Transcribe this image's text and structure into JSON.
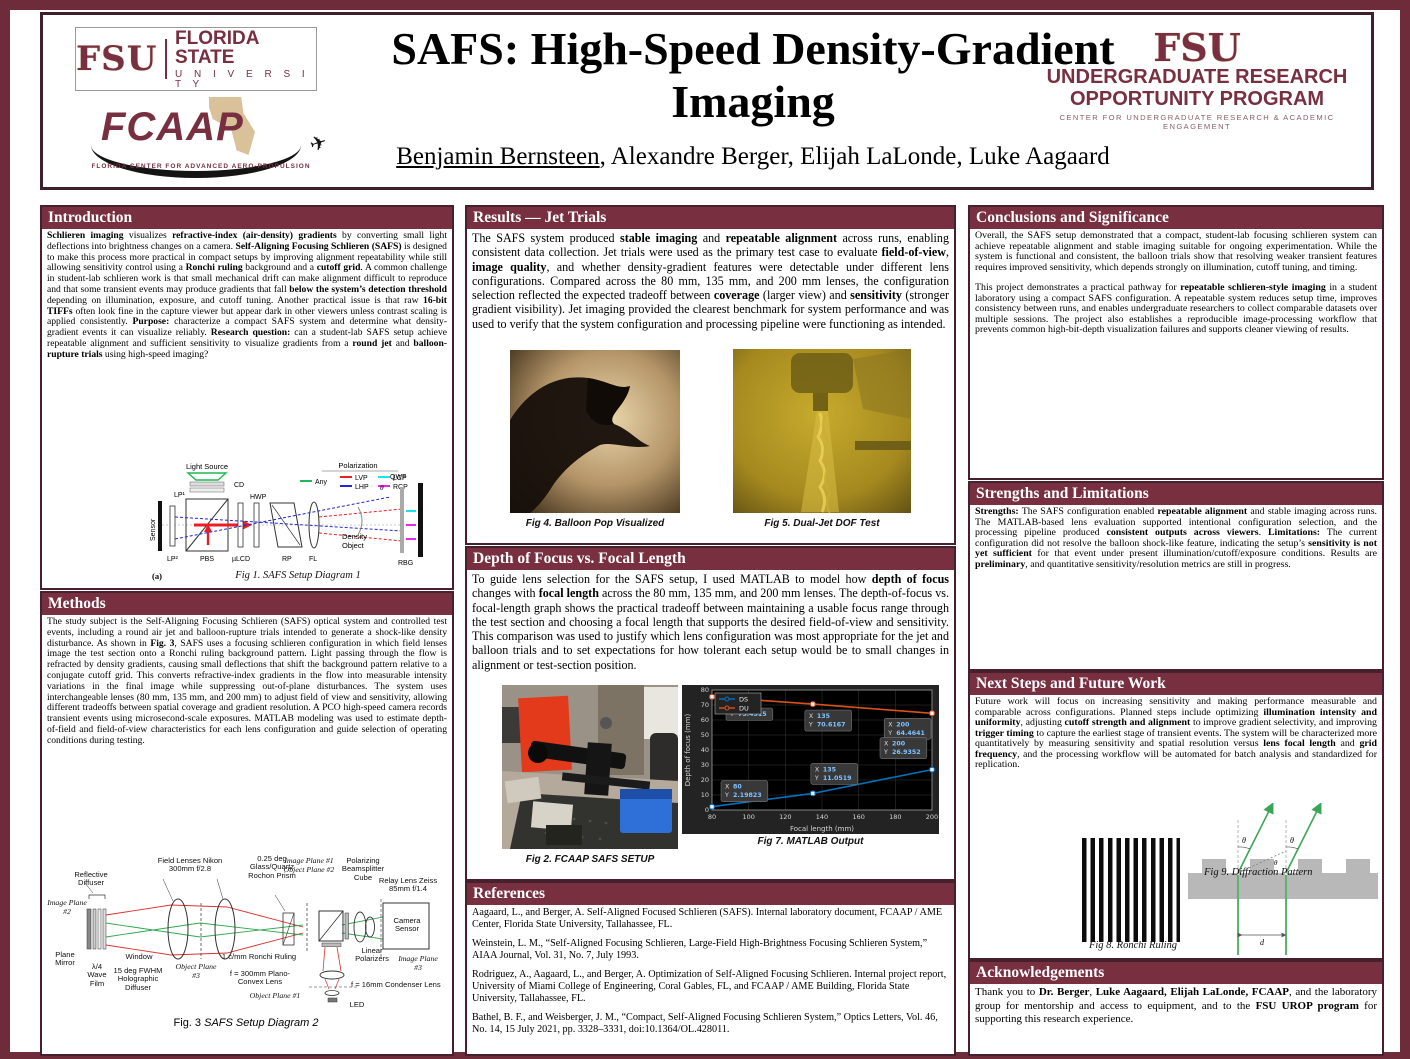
{
  "theme": {
    "garnet": "#782F40",
    "garnet_dark": "#6e2b3a",
    "box_border": "#46202c"
  },
  "header": {
    "fsu_logo": {
      "fsu": "FSU",
      "line1": "FLORIDA STATE",
      "line2": "U N I V E R S I T Y"
    },
    "fcaap_logo": {
      "name": "FCAAP",
      "jet": "✈",
      "tagline": "FLORIDA CENTER FOR ADVANCED AERO-PROPULSION"
    },
    "title": "SAFS: High-Speed Density-Gradient Imaging",
    "author_underlined": "Benjamin Bernsteen",
    "authors_rest": ", Alexandre Berger, Elijah LaLonde, Luke Aagaard",
    "urop_logo": {
      "fsu": "FSU",
      "line1": "UNDERGRADUATE RESEARCH",
      "line2": "OPPORTUNITY PROGRAM",
      "line3": "CENTER FOR UNDERGRADUATE RESEARCH & ACADEMIC ENGAGEMENT"
    }
  },
  "sections": {
    "introduction": {
      "title": "Introduction",
      "body": [
        {
          "b": "Schlieren imaging"
        },
        {
          "t": " visualizes "
        },
        {
          "b": "refractive-index (air-density) gradients"
        },
        {
          "t": " by converting small light deflections into brightness changes on a camera. "
        },
        {
          "b": "Self-Aligning Focusing Schlieren (SAFS)"
        },
        {
          "t": " is designed to make this process more practical in compact setups by improving alignment repeatability while still allowing sensitivity control using a "
        },
        {
          "b": "Ronchi ruling"
        },
        {
          "t": " background and a "
        },
        {
          "b": "cutoff grid"
        },
        {
          "t": ". A common challenge in student-lab schlieren work is that small mechanical drift can make alignment difficult to reproduce and that some transient events may produce gradients that fall "
        },
        {
          "b": "below the system’s detection threshold"
        },
        {
          "t": " depending on illumination, exposure, and cutoff tuning. Another practical issue is that raw "
        },
        {
          "b": "16-bit TIFFs"
        },
        {
          "t": " often look fine in the capture viewer but appear dark in other viewers unless contrast scaling is applied consistently. "
        },
        {
          "b": "Purpose:"
        },
        {
          "t": " characterize a compact SAFS system and determine what density-gradient events it can visualize reliably. "
        },
        {
          "b": "Research question:"
        },
        {
          "t": " can a student-lab SAFS setup achieve repeatable alignment and sufficient sensitivity to visualize gradients from a "
        },
        {
          "b": "round jet"
        },
        {
          "t": " and "
        },
        {
          "b": "balloon-rupture trials"
        },
        {
          "t": " using high-speed imaging?"
        }
      ]
    },
    "methods": {
      "title": "Methods",
      "body": [
        {
          "t": "The study subject is the Self-Aligning Focusing Schlieren (SAFS) optical system and controlled test events, including a round air jet and balloon-rupture trials intended to generate a shock-like density disturbance. As shown in "
        },
        {
          "b": "Fig. 3"
        },
        {
          "t": ", SAFS uses a focusing schlieren configuration in which field lenses image the test section onto a Ronchi ruling background pattern. Light passing through the flow is refracted by density gradients, causing small deflections that shift the background pattern relative to a conjugate cutoff grid. This converts refractive-index gradients in the flow into measurable intensity variations in the final image while suppressing out-of-plane disturbances. The system uses interchangeable lenses (80 mm, 135 mm, and 200 mm) to adjust field of view and sensitivity, allowing different tradeoffs between spatial coverage and gradient resolution. A PCO high-speed camera records transient events using microsecond-scale exposures. MATLAB modeling was used to estimate depth-of-field and field-of-view characteristics for each lens configuration and guide selection of operating conditions during testing."
        }
      ]
    },
    "results": {
      "title": "Results — Jet Trials",
      "body": [
        {
          "t": "The SAFS system produced "
        },
        {
          "b": "stable imaging"
        },
        {
          "t": " and "
        },
        {
          "b": "repeatable alignment"
        },
        {
          "t": " across runs, enabling consistent data collection. Jet trials were used as the primary test case to evaluate "
        },
        {
          "b": "field-of-view"
        },
        {
          "t": ", "
        },
        {
          "b": "image quality"
        },
        {
          "t": ", and whether density-gradient features were detectable under different lens configurations. Compared across the 80 mm, 135 mm, and 200 mm lenses, the configuration selection reflected the expected tradeoff between "
        },
        {
          "b": "coverage"
        },
        {
          "t": " (larger view) and "
        },
        {
          "b": "sensitivity"
        },
        {
          "t": " (stronger gradient visibility). Jet imaging provided the clearest benchmark for system performance and was used to verify that the system configuration and processing pipeline were functioning as intended."
        }
      ]
    },
    "dof": {
      "title": "Depth of Focus vs. Focal Length",
      "body": [
        {
          "t": "To guide lens selection for the SAFS setup, I used MATLAB to model how "
        },
        {
          "b": "depth of focus"
        },
        {
          "t": " changes with "
        },
        {
          "b": "focal length"
        },
        {
          "t": " across the 80 mm, 135 mm, and 200 mm lenses. The depth-of-focus vs. focal-length graph shows the practical tradeoff between maintaining a usable focus range through the test section and choosing a focal length that supports the desired field-of-view and sensitivity. This comparison was used to justify which lens configuration was most appropriate for the jet and balloon trials and to set expectations for how tolerant each setup would be to small changes in alignment or test-section position."
        }
      ]
    },
    "references": {
      "title": "References",
      "items": [
        "Aagaard, L., and Berger, A. Self-Aligned Focused Schlieren (SAFS). Internal laboratory document, FCAAP / AME Center, Florida State University, Tallahassee, FL.",
        "Weinstein, L. M., “Self-Aligned Focusing Schlieren, Large-Field High-Brightness Focusing Schlieren System,” AIAA Journal, Vol. 31, No. 7, July 1993.",
        "Rodriguez, A., Aagaard, L., and Berger, A. Optimization of Self-Aligned Focusing Schlieren. Internal project report, University of Miami College of Engineering, Coral Gables, FL, and FCAAP / AME Building, Florida State University, Tallahassee, FL.",
        "Bathel, B. F., and Weisberger, J. M., “Compact, Self-Aligned Focusing Schlieren System,” Optics Letters, Vol. 46, No. 14, 15 July 2021, pp. 3328–3331, doi:10.1364/OL.428011."
      ]
    },
    "conclusions": {
      "title": "Conclusions and Significance",
      "para1": [
        {
          "t": "Overall, the SAFS setup demonstrated that a compact, student-lab focusing schlieren system can achieve repeatable alignment and stable imaging suitable for ongoing experimentation. While the system is functional and consistent, the balloon trials show that resolving weaker transient features requires improved sensitivity, which depends strongly on illumination, cutoff tuning, and timing."
        }
      ],
      "para2": [
        {
          "t": "This project demonstrates a practical pathway for "
        },
        {
          "b": "repeatable schlieren-style imaging"
        },
        {
          "t": " in a student laboratory using a compact SAFS configuration. A repeatable system reduces setup time, improves consistency between runs, and enables undergraduate researchers to collect comparable datasets over multiple sessions. The project also establishes a reproducible image-processing workflow that prevents common high-bit-depth visualization failures and supports cleaner viewing of results."
        }
      ]
    },
    "strengths": {
      "title": "Strengths and Limitations",
      "body": [
        {
          "b": "Strengths:"
        },
        {
          "t": " The SAFS configuration enabled "
        },
        {
          "b": "repeatable alignment"
        },
        {
          "t": " and stable imaging across runs. The MATLAB-based lens evaluation supported intentional configuration selection, and the processing pipeline produced "
        },
        {
          "b": "consistent outputs across viewers"
        },
        {
          "t": ". "
        },
        {
          "b": "Limitations:"
        },
        {
          "t": " The current configuration did not resolve the balloon shock-like feature, indicating the setup’s "
        },
        {
          "b": "sensitivity is not yet sufficient"
        },
        {
          "t": " for that event under present illumination/cutoff/exposure conditions. Results are "
        },
        {
          "b": "preliminary"
        },
        {
          "t": ", and quantitative sensitivity/resolution metrics are still in progress."
        }
      ]
    },
    "next_steps": {
      "title": "Next Steps and Future Work",
      "body": [
        {
          "t": "Future work will focus on increasing sensitivity and making performance measurable and comparable across configurations. Planned steps include optimizing "
        },
        {
          "b": "illumination intensity and uniformity"
        },
        {
          "t": ", adjusting "
        },
        {
          "b": "cutoff strength and alignment"
        },
        {
          "t": " to improve gradient selectivity, and improving "
        },
        {
          "b": "trigger timing"
        },
        {
          "t": " to capture the earliest stage of transient events. The system will be characterized more quantitatively by measuring sensitivity and spatial resolution versus "
        },
        {
          "b": "lens focal length"
        },
        {
          "t": " and "
        },
        {
          "b": "grid frequency"
        },
        {
          "t": ", and the processing workflow will be automated for batch analysis and standardized for replication."
        }
      ]
    },
    "acknowledgements": {
      "title": "Acknowledgements",
      "body": [
        {
          "t": "Thank you to "
        },
        {
          "b": "Dr. Berger"
        },
        {
          "t": ", "
        },
        {
          "b": "Luke Aagaard, Elijah LaLonde, FCAAP"
        },
        {
          "t": ", and the laboratory group for mentorship and access to equipment, and to the "
        },
        {
          "b": "FSU UROP program"
        },
        {
          "t": " for supporting this research experience."
        }
      ]
    }
  },
  "figures": {
    "fig1": {
      "a": "(a)",
      "caption": "Fig 1. SAFS Setup Diagram 1",
      "labels": {
        "light_source": "Light Source",
        "cd": "CD",
        "lp1": "LP¹",
        "hwp": "HWP",
        "qwf": "QWF",
        "sensor": "Sensor",
        "lp2": "LP²",
        "pbs": "PBS",
        "ulcd": "µLCD",
        "rp": "RP",
        "fl": "FL",
        "density1": "Density",
        "density2": "Object",
        "rbg": "RBG",
        "theta": "θ"
      },
      "legend": {
        "title": "Polarization",
        "items": [
          {
            "label": "Any",
            "color": "#1db954"
          },
          {
            "label": "LVP",
            "color": "#ed1c24"
          },
          {
            "label": "LCP",
            "color": "#19e4ee"
          },
          {
            "label": "LHP",
            "color": "#2426d8"
          },
          {
            "label": "RCP",
            "color": "#ee23ee"
          }
        ]
      }
    },
    "fig2": {
      "caption": "Fig 2. FCAAP SAFS SETUP"
    },
    "fig3": {
      "caption_prefix": "Fig. 3 ",
      "caption": "SAFS Setup Diagram 2",
      "labels": {
        "image_plane_2": "Image Plane #2",
        "reflective_diffuser": "Reflective Diffuser",
        "field_lenses": "Field Lenses Nikon 300mm f/2.8",
        "rochon": "0.25 deg Glass/Quartz Rochon Prism",
        "image_plane_1": "Image Plane #1",
        "object_plane_2": "Object Plane #2",
        "beamsplitter": "Polarizing Beamsplitter Cube",
        "relay": "Relay Lens Zeiss 85mm f/1.4",
        "camera_sensor": "Camera Sensor",
        "plane_mirror": "Plane Mirror",
        "wave_film": "λ/4 Wave Film",
        "holo_diffuser": "15 deg FWHM Holographic Diffuser",
        "window": "Window",
        "object_plane_3": "Object Plane #3",
        "ronchi": "1 c/mm Ronchi Ruling",
        "plano_convex": "f = 300mm Plano-Convex Lens",
        "object_plane_1": "Object Plane #1",
        "linear_polarizers": "Linear Polarizers",
        "condenser": "f = 16mm Condenser Lens",
        "led": "LED",
        "image_plane_3": "Image Plane #3"
      }
    },
    "fig4": {
      "caption": "Fig 4. Balloon Pop Visualized"
    },
    "fig5": {
      "caption": "Fig 5. Dual-Jet DOF Test"
    },
    "fig7": {
      "caption": "Fig 7. MATLAB Output"
    },
    "fig8": {
      "caption": "Fig 8. Ronchi Ruling"
    },
    "fig9": {
      "caption": "Fig 9. Diffraction Pattern",
      "theta": "θ",
      "d": "d"
    }
  },
  "chart_data": {
    "type": "line",
    "xlabel": "Focal length (mm)",
    "ylabel": "Depth of focus (mm)",
    "xlim": [
      80,
      200
    ],
    "ylim": [
      0,
      80
    ],
    "xticks": [
      80,
      100,
      120,
      140,
      160,
      180,
      200
    ],
    "yticks": [
      0,
      10,
      20,
      30,
      40,
      50,
      60,
      70,
      80
    ],
    "x": [
      80,
      135,
      200
    ],
    "series": [
      {
        "name": "DS",
        "color": "#0072BD",
        "values": [
          2.19823,
          11.0519,
          26.9352
        ]
      },
      {
        "name": "DU",
        "color": "#D95319",
        "values": [
          75.4515,
          70.6167,
          64.4641
        ]
      }
    ],
    "legend_position": "top-left",
    "grid": true,
    "background": "dark",
    "datatips": [
      {
        "series": "DU",
        "x": 80,
        "lines": [
          "Y 75.4515"
        ],
        "placement": "legend-right"
      },
      {
        "series": "DU",
        "x": 135,
        "lines": [
          "X 135",
          "Y 70.6167"
        ],
        "placement": "below"
      },
      {
        "series": "DU",
        "x": 200,
        "lines": [
          "X 200",
          "Y 64.4641"
        ],
        "placement": "below-left"
      },
      {
        "series": "DS",
        "x": 80,
        "lines": [
          "X 80",
          "Y 2.19823"
        ],
        "placement": "above-right"
      },
      {
        "series": "DS",
        "x": 135,
        "lines": [
          "X 135",
          "Y 11.0519"
        ],
        "placement": "above"
      },
      {
        "series": "DS",
        "x": 200,
        "lines": [
          "X 200",
          "Y 26.9352"
        ],
        "placement": "above-left"
      }
    ]
  }
}
